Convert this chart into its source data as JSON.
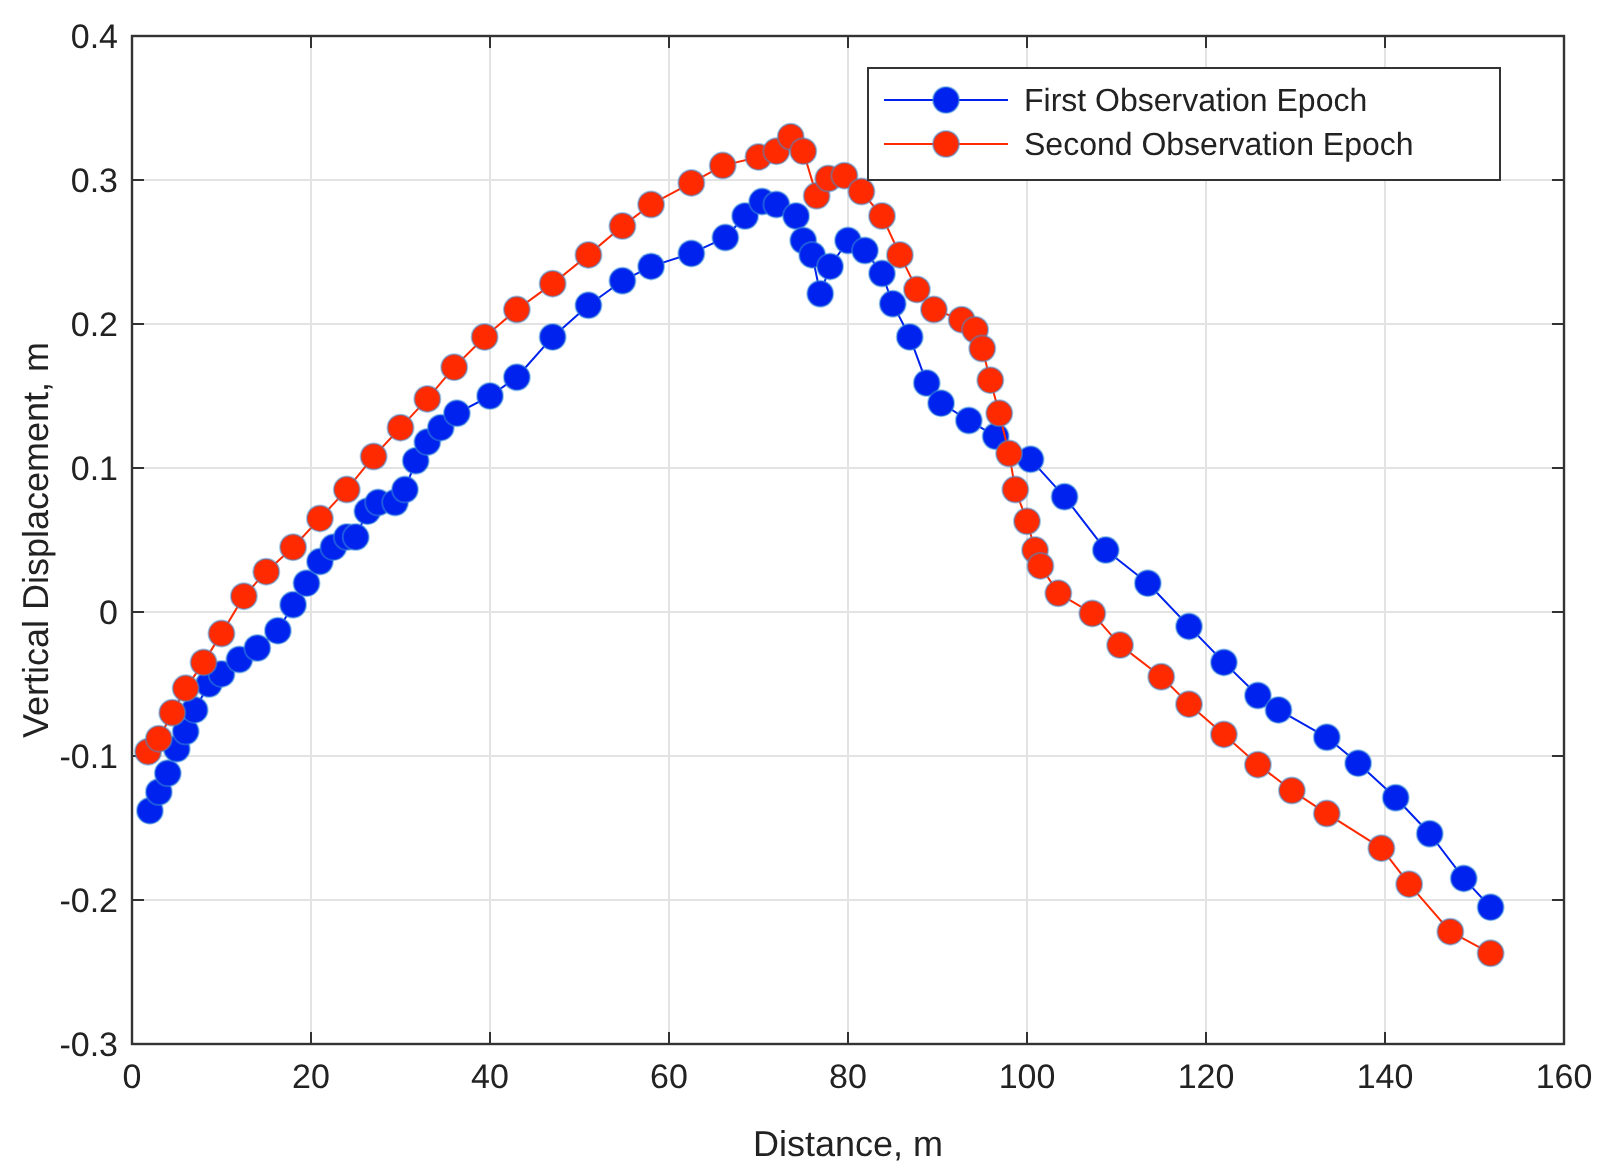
{
  "chart_data": {
    "type": "line",
    "xlabel": "Distance, m",
    "ylabel": "Vertical Displacement, m",
    "xlim": [
      0,
      160
    ],
    "xticks": [
      0,
      20,
      40,
      60,
      80,
      100,
      120,
      140,
      160
    ],
    "ylim": [
      -0.3,
      0.4
    ],
    "yticks": [
      -0.3,
      -0.2,
      -0.1,
      0,
      0.1,
      0.2,
      0.3,
      0.4
    ],
    "grid": true,
    "legend": "top right",
    "marker": "circle",
    "line_style": "solid",
    "series": [
      {
        "name": "First Observation Epoch",
        "color": "#0022ee",
        "x": [
          2,
          3,
          4,
          5,
          6,
          7,
          8.6,
          10,
          12,
          14,
          16.3,
          18,
          19.5,
          21,
          22.5,
          24,
          25,
          26.3,
          27.5,
          29.4,
          30.5,
          31.7,
          33,
          34.5,
          36.3,
          40,
          43,
          47,
          51,
          54.8,
          58,
          62.5,
          66.3,
          68.5,
          70.4,
          72,
          74.2,
          75,
          76,
          76.9,
          78,
          80,
          81.9,
          83.8,
          85,
          86.9,
          88.8,
          90.4,
          93.5,
          96.5,
          100.4,
          104.2,
          108.8,
          113.5,
          118.1,
          122,
          125.8,
          128.1,
          133.5,
          137,
          141.2,
          145,
          148.8,
          151.8
        ],
        "values": [
          -0.138,
          -0.125,
          -0.112,
          -0.095,
          -0.083,
          -0.068,
          -0.05,
          -0.043,
          -0.033,
          -0.025,
          -0.013,
          0.005,
          0.02,
          0.035,
          0.045,
          0.052,
          0.052,
          0.07,
          0.076,
          0.076,
          0.085,
          0.105,
          0.118,
          0.128,
          0.138,
          0.15,
          0.163,
          0.191,
          0.213,
          0.23,
          0.24,
          0.249,
          0.26,
          0.275,
          0.285,
          0.283,
          0.275,
          0.258,
          0.248,
          0.221,
          0.24,
          0.258,
          0.251,
          0.235,
          0.214,
          0.191,
          0.159,
          0.145,
          0.133,
          0.122,
          0.106,
          0.08,
          0.043,
          0.02,
          -0.01,
          -0.035,
          -0.058,
          -0.068,
          -0.087,
          -0.105,
          -0.129,
          -0.154,
          -0.185,
          -0.205
        ]
      },
      {
        "name": "Second Observation Epoch",
        "color": "#ff2a00",
        "x": [
          1.8,
          3,
          4.5,
          6,
          8,
          10,
          12.5,
          15,
          18,
          21,
          24,
          27,
          30,
          33,
          36,
          39.4,
          43,
          47,
          51,
          54.8,
          58,
          62.5,
          66,
          70,
          72,
          73.6,
          75,
          76.5,
          77.8,
          79.6,
          81.5,
          83.8,
          85.8,
          87.7,
          89.6,
          92.7,
          94.2,
          95,
          95.9,
          96.9,
          98,
          98.7,
          100,
          100.9,
          101.5,
          103.5,
          107.3,
          110.4,
          115,
          118.1,
          122,
          125.8,
          129.6,
          133.5,
          139.6,
          142.7,
          147.3,
          151.8
        ],
        "values": [
          -0.097,
          -0.088,
          -0.07,
          -0.053,
          -0.035,
          -0.015,
          0.011,
          0.028,
          0.045,
          0.065,
          0.085,
          0.108,
          0.128,
          0.148,
          0.17,
          0.191,
          0.21,
          0.228,
          0.248,
          0.268,
          0.283,
          0.298,
          0.31,
          0.316,
          0.32,
          0.33,
          0.32,
          0.289,
          0.301,
          0.303,
          0.292,
          0.275,
          0.248,
          0.224,
          0.21,
          0.203,
          0.196,
          0.183,
          0.161,
          0.138,
          0.11,
          0.085,
          0.063,
          0.043,
          0.032,
          0.013,
          -0.001,
          -0.023,
          -0.045,
          -0.064,
          -0.085,
          -0.106,
          -0.124,
          -0.14,
          -0.164,
          -0.189,
          -0.222,
          -0.237
        ]
      }
    ]
  }
}
